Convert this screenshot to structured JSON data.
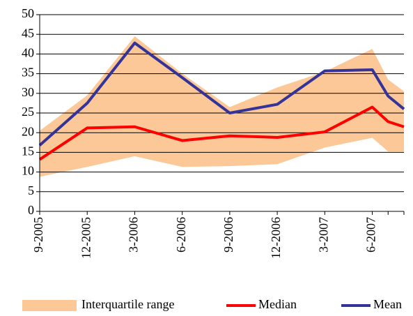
{
  "chart_data": {
    "type": "line",
    "categories": [
      "9-2005",
      "12-2005",
      "3-2006",
      "6-2006",
      "9-2006",
      "12-2006",
      "3-2007",
      "6-2007",
      null,
      null
    ],
    "series": [
      {
        "name": "Interquartile range",
        "color": "#fcc897",
        "type": "band",
        "low": [
          8.8,
          11.3,
          14,
          11.3,
          11.5,
          12,
          16.2,
          18.7,
          15.2,
          15.2
        ],
        "high": [
          20.5,
          29.5,
          44.5,
          35,
          26.5,
          31.5,
          35.5,
          41.3,
          33.5,
          30.5
        ]
      },
      {
        "name": "Median",
        "color": "#ff0000",
        "type": "line",
        "values": [
          13.2,
          21.2,
          21.5,
          18,
          19.2,
          18.8,
          20.2,
          26.5,
          22.8,
          21.5
        ]
      },
      {
        "name": "Mean",
        "color": "#333399",
        "type": "line",
        "values": [
          16.8,
          27.5,
          42.8,
          34,
          25,
          27.2,
          35.7,
          36,
          29.3,
          26
        ]
      }
    ],
    "ylim": [
      0,
      50
    ],
    "yticks": [
      0,
      5,
      10,
      15,
      20,
      25,
      30,
      35,
      40,
      45,
      50
    ],
    "grid": true,
    "legend": "bottom"
  }
}
